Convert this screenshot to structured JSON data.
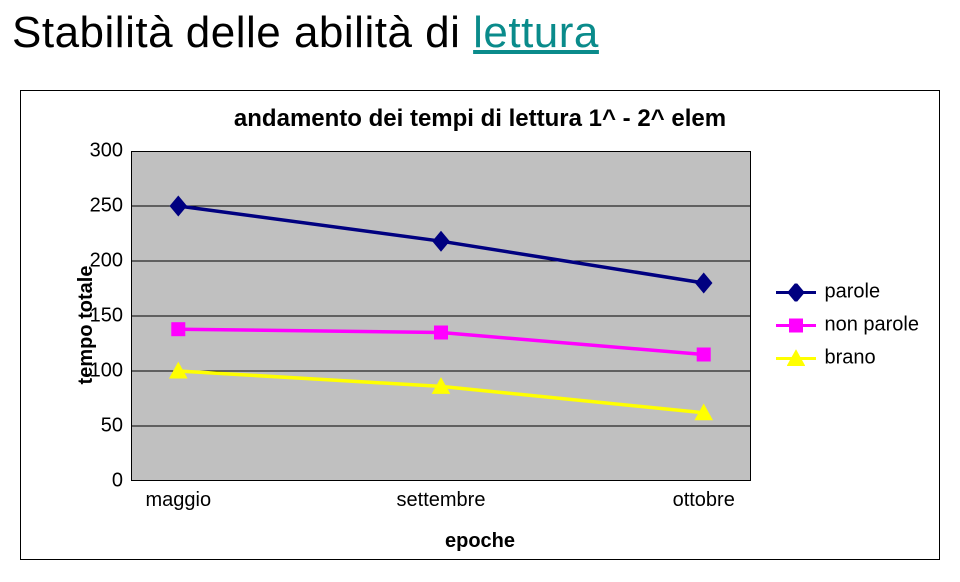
{
  "page_title_plain": "Stabilità delle abilità di ",
  "page_title_link": "lettura",
  "link_color": "#0a8b8b",
  "chart": {
    "type": "line",
    "title": "andamento dei tempi di lettura 1^ - 2^ elem",
    "title_fontsize": 24,
    "xlabel": "epoche",
    "ylabel": "tempo totale",
    "label_fontsize": 20,
    "tick_fontsize": 20,
    "xlim": [
      0,
      2
    ],
    "ylim": [
      0,
      300
    ],
    "yticks": [
      0,
      50,
      100,
      150,
      200,
      250,
      300
    ],
    "categories": [
      "maggio",
      "settembre",
      "ottobre"
    ],
    "plot_background": "#c0c0c0",
    "frame_background": "#ffffff",
    "grid_color": "#000000",
    "grid_width": 1,
    "line_width": 3.5,
    "marker_size": 14,
    "series": [
      {
        "name": "parole",
        "values": [
          250,
          218,
          180
        ],
        "color": "#000080",
        "marker_shape": "diamond"
      },
      {
        "name": "non parole",
        "values": [
          138,
          135,
          115
        ],
        "color": "#ff00ff",
        "marker_shape": "square"
      },
      {
        "name": "brano",
        "values": [
          100,
          86,
          62
        ],
        "color": "#ffff00",
        "marker_shape": "triangle"
      }
    ],
    "legend_position": "right",
    "legend_fontsize": 20,
    "x_category_offset": 0.18
  }
}
